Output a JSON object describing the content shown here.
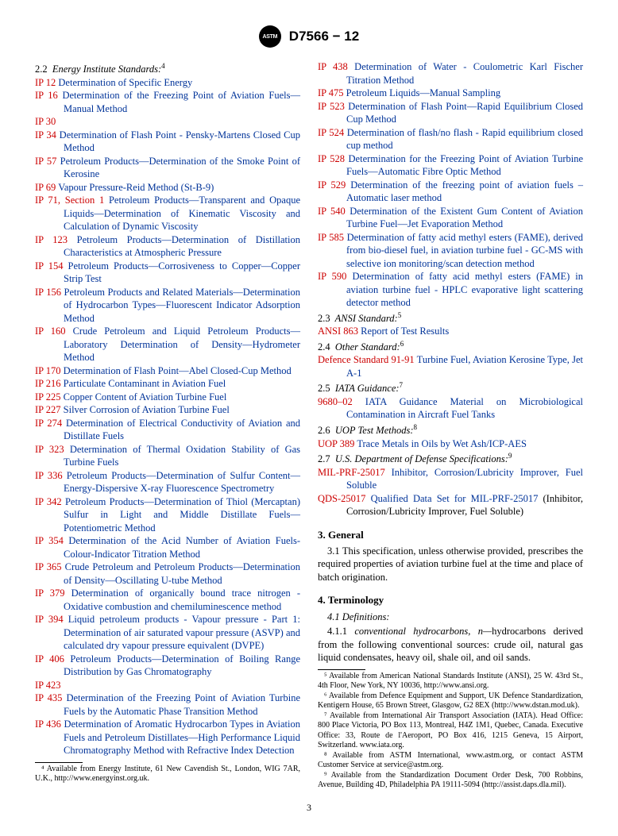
{
  "header": {
    "standard_number": "D7566 − 12",
    "logo_text": "ASTM"
  },
  "sections": {
    "energy": {
      "num": "2.2",
      "title": "Energy Institute Standards:",
      "sup": "4"
    },
    "ansi": {
      "num": "2.3",
      "title": "ANSI Standard:",
      "sup": "5"
    },
    "other": {
      "num": "2.4",
      "title": "Other Standard:",
      "sup": "6"
    },
    "iata": {
      "num": "2.5",
      "title": "IATA Guidance:",
      "sup": "7"
    },
    "uop": {
      "num": "2.6",
      "title": "UOP Test Methods:",
      "sup": "8"
    },
    "usdod": {
      "num": "2.7",
      "title": "U.S. Department of Defense Specifications:",
      "sup": "9"
    }
  },
  "energy_left": [
    {
      "ref": "IP 12",
      "title": "Determination of Specific Energy"
    },
    {
      "ref": "IP 16",
      "title": "Determination of the Freezing Point of Aviation Fuels—Manual Method"
    },
    {
      "ref": "IP 30",
      "title": ""
    },
    {
      "ref": "IP 34",
      "title": "Determination of Flash Point - Pensky-Martens Closed Cup Method"
    },
    {
      "ref": "IP 57",
      "title": "Petroleum Products—Determination of the Smoke Point of Kerosine"
    },
    {
      "ref": "IP 69",
      "title": "Vapour Pressure-Reid Method (St-B-9)"
    },
    {
      "ref": "IP 71, Section 1",
      "title": "Petroleum Products—Transparent and Opaque Liquids—Determination of Kinematic Viscosity and Calculation of Dynamic Viscosity"
    },
    {
      "ref": "IP 123",
      "title": "Petroleum Products—Determination of Distillation Characteristics at Atmospheric Pressure"
    },
    {
      "ref": "IP 154",
      "title": "Petroleum Products—Corrosiveness to Copper—Copper Strip Test"
    },
    {
      "ref": "IP 156",
      "title": "Petroleum Products and Related Materials—Determination of Hydrocarbon Types—Fluorescent Indicator Adsorption Method"
    },
    {
      "ref": "IP 160",
      "title": "Crude Petroleum and Liquid Petroleum Products—Laboratory Determination of Density—Hydrometer Method"
    },
    {
      "ref": "IP 170",
      "title": "Determination of Flash Point—Abel Closed-Cup Method"
    },
    {
      "ref": "IP 216",
      "title": "Particulate Contaminant in Aviation Fuel"
    },
    {
      "ref": "IP 225",
      "title": "Copper Content of Aviation Turbine Fuel"
    },
    {
      "ref": "IP 227",
      "title": "Silver Corrosion of Aviation Turbine Fuel"
    },
    {
      "ref": "IP 274",
      "title": "Determination of Electrical Conductivity of Aviation and Distillate Fuels"
    },
    {
      "ref": "IP 323",
      "title": "Determination of Thermal Oxidation Stability of Gas Turbine Fuels"
    },
    {
      "ref": "IP 336",
      "title": "Petroleum Products—Determination of Sulfur Content—Energy-Dispersive X-ray Fluorescence Spectrometry"
    },
    {
      "ref": "IP 342",
      "title": "Petroleum Products—Determination of Thiol (Mercaptan) Sulfur in Light and Middle Distillate Fuels—Potentiometric Method"
    },
    {
      "ref": "IP 354",
      "title": "Determination of the Acid Number of Aviation Fuels-Colour-Indicator Titration Method"
    },
    {
      "ref": "IP 365",
      "title": "Crude Petroleum and Petroleum Products—Determination of Density—Oscillating U-tube Method"
    },
    {
      "ref": "IP 379",
      "title": "Determination of organically bound trace nitrogen - Oxidative combustion and chemiluminescence method"
    },
    {
      "ref": "IP 394",
      "title": "Liquid petroleum products - Vapour pressure - Part 1: Determination of air saturated vapour pressure (ASVP) and calculated dry vapour pressure equivalent (DVPE)"
    },
    {
      "ref": "IP 406",
      "title": "Petroleum Products—Determination of Boiling Range Distribution by Gas Chromatography"
    },
    {
      "ref": "IP 423",
      "title": ""
    },
    {
      "ref": "IP 435",
      "title": "Determination of the Freezing Point of Aviation Turbine Fuels by the Automatic Phase Transition Method"
    },
    {
      "ref": "IP 436",
      "title": "Determination of Aromatic Hydrocarbon Types in Aviation Fuels and Petroleum Distillates—High Performance Liquid Chromatography Method with Refractive Index Detection"
    }
  ],
  "energy_right": [
    {
      "ref": "IP 438",
      "title": "Determination of Water - Coulometric Karl Fischer Titration Method"
    },
    {
      "ref": "IP 475",
      "title": "Petroleum Liquids—Manual Sampling"
    },
    {
      "ref": "IP 523",
      "title": "Determination of Flash Point—Rapid Equilibrium Closed Cup Method"
    },
    {
      "ref": "IP 524",
      "title": "Determination of flash/no flash - Rapid equilibrium closed cup method"
    },
    {
      "ref": "IP 528",
      "title": "Determination for the Freezing Point of Aviation Turbine Fuels—Automatic Fibre Optic Method"
    },
    {
      "ref": "IP 529",
      "title": "Determination of the freezing point of aviation fuels – Automatic laser method"
    },
    {
      "ref": "IP 540",
      "title": "Determination of the Existent Gum Content of Aviation Turbine Fuel—Jet Evaporation Method"
    },
    {
      "ref": "IP 585",
      "title": "Determination of fatty acid methyl esters (FAME), derived from bio-diesel fuel, in aviation turbine fuel - GC-MS with selective ion monitoring/scan detection method"
    },
    {
      "ref": "IP 590",
      "title": "Determination of fatty acid methyl esters (FAME) in aviation turbine fuel - HPLC evaporative light scattering detector method"
    }
  ],
  "ansi_items": [
    {
      "ref": "ANSI 863",
      "title": "Report of Test Results"
    }
  ],
  "other_items": [
    {
      "ref": "Defence Standard 91-91",
      "title": "Turbine Fuel, Aviation Kerosine Type, Jet A-1"
    }
  ],
  "iata_items": [
    {
      "ref": "9680–02",
      "title": "IATA Guidance Material on Microbiological Contamination in Aircraft Fuel Tanks"
    }
  ],
  "uop_items": [
    {
      "ref": "UOP 389",
      "title": "Trace Metals in Oils by Wet Ash/ICP-AES"
    }
  ],
  "usdod_items": [
    {
      "ref": "MIL-PRF-25017",
      "title": "Inhibitor, Corrosion/Lubricity Improver, Fuel Soluble"
    },
    {
      "ref": "QDS-25017",
      "title": "Qualified Data Set for MIL-PRF-25017",
      "tail": "(Inhibitor, Corrosion/Lubricity Improver, Fuel Soluble)"
    }
  ],
  "generalHeading": "3.  General",
  "generalPara": "3.1  This specification, unless otherwise provided, prescribes the required properties of aviation turbine fuel at the time and place of batch origination.",
  "termHeading": "4.  Terminology",
  "defHeading": "4.1  Definitions:",
  "def411_num": "4.1.1  ",
  "def411_term": "conventional hydrocarbons, n—",
  "def411_body": "hydrocarbons derived from the following conventional sources: crude oil, natural gas liquid condensates, heavy oil, shale oil, and oil sands.",
  "footnotes_left": "⁴ Available from Energy Institute, 61 New Cavendish St., London, WIG 7AR, U.K., http://www.energyinst.org.uk.",
  "footnotes_right": [
    "⁵ Available from American National Standards Institute (ANSI), 25 W. 43rd St., 4th Floor, New York, NY 10036, http://www.ansi.org.",
    "⁶ Available from Defence Equipment and Support, UK Defence Standardization, Kentigern House, 65 Brown Street, Glasgow, G2 8EX (http://www.dstan.mod.uk).",
    "⁷ Available from International Air Transport Association (IATA). Head Office: 800 Place Victoria, PO Box 113, Montreal, H4Z 1M1, Quebec, Canada. Executive Office: 33, Route de l'Aeroport, PO Box 416, 1215 Geneva, 15 Airport, Switzerland. www.iata.org.",
    "⁸ Available from ASTM International, www.astm.org, or contact ASTM Customer Service at service@astm.org.",
    "⁹ Available from the Standardization Document Order Desk, 700 Robbins, Avenue, Building 4D, Philadelphia PA 19111-5094 (http://assist.daps.dla.mil)."
  ],
  "page_number": "3"
}
